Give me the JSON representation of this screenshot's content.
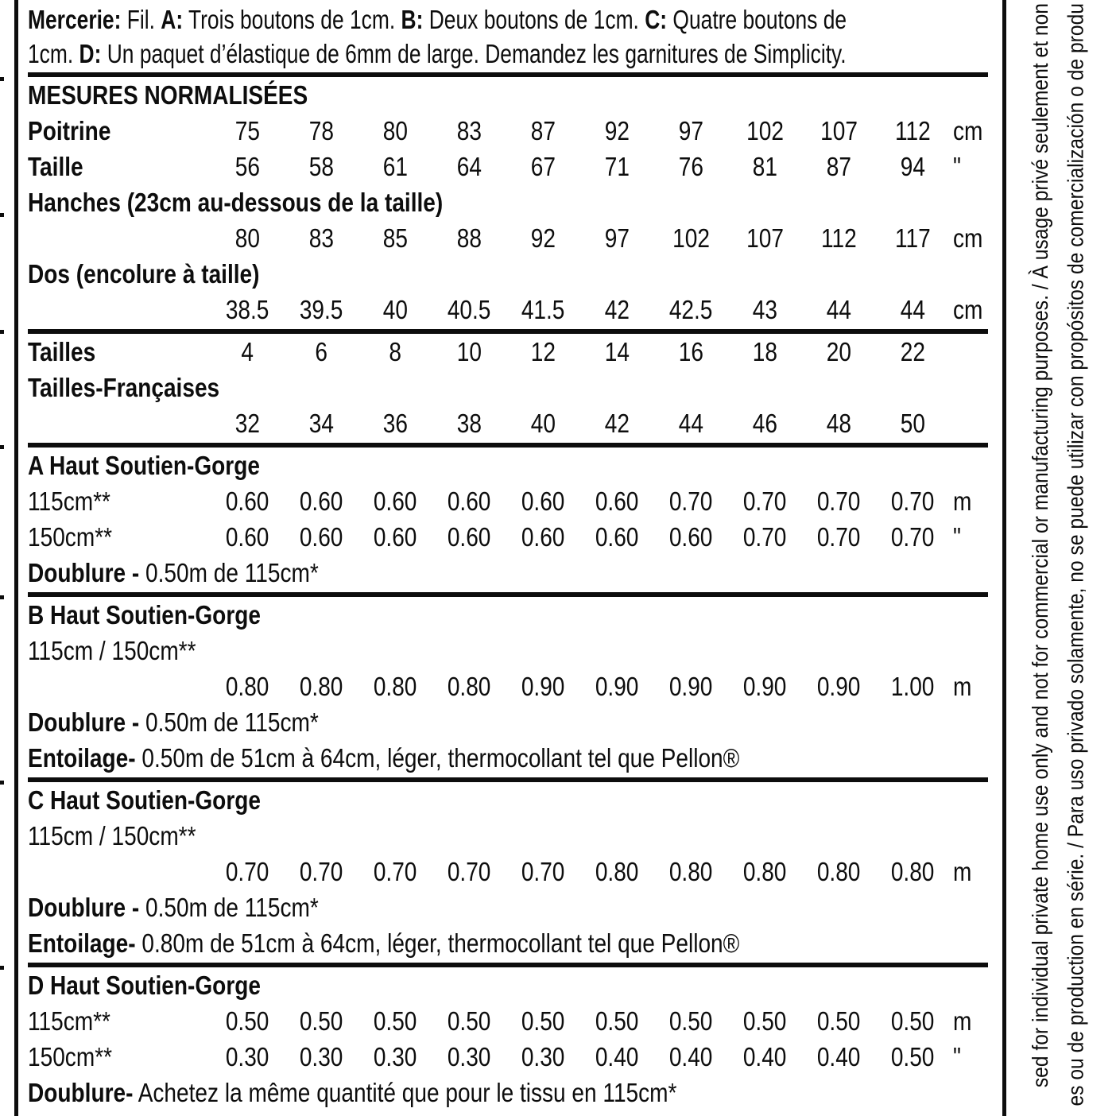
{
  "colors": {
    "ink": "#0d0d0d",
    "paper": "#ffffff"
  },
  "mercerie": {
    "b1": "Mercerie:",
    "r1": " Fil. ",
    "b2": "A:",
    "r2": " Trois boutons de 1cm. ",
    "b3": "B:",
    "r3": " Deux boutons de 1cm. ",
    "b4": "C:",
    "r4": " Quatre boutons de",
    "r5": "1cm. ",
    "b5": "D:",
    "r6": " Un paquet d’élastique de 6mm de large. Demandez les garnitures de Simplicity."
  },
  "measurements": {
    "title": "MESURES NORMALISÉES",
    "rows": [
      {
        "label": "Poitrine",
        "values": [
          "75",
          "78",
          "80",
          "83",
          "87",
          "92",
          "97",
          "102",
          "107",
          "112"
        ],
        "unit": "cm"
      },
      {
        "label": "Taille",
        "values": [
          "56",
          "58",
          "61",
          "64",
          "67",
          "71",
          "76",
          "81",
          "87",
          "94"
        ],
        "unit": "\""
      },
      {
        "label": "Hanches (23cm au-dessous de la taille)",
        "values": [
          "80",
          "83",
          "85",
          "88",
          "92",
          "97",
          "102",
          "107",
          "112",
          "117"
        ],
        "unit": "cm"
      },
      {
        "label": "Dos (encolure à taille)",
        "values": [
          "38.5",
          "39.5",
          "40",
          "40.5",
          "41.5",
          "42",
          "42.5",
          "43",
          "44",
          "44"
        ],
        "unit": "cm"
      }
    ]
  },
  "sizes": {
    "rows": [
      {
        "label": "Tailles",
        "values": [
          "4",
          "6",
          "8",
          "10",
          "12",
          "14",
          "16",
          "18",
          "20",
          "22"
        ],
        "unit": ""
      },
      {
        "label": "Tailles-Françaises",
        "values": [
          "32",
          "34",
          "36",
          "38",
          "40",
          "42",
          "44",
          "46",
          "48",
          "50"
        ],
        "unit": ""
      }
    ]
  },
  "sections": [
    {
      "title": "A Haut Soutien-Gorge",
      "rows": [
        {
          "label": "115cm**",
          "values": [
            "0.60",
            "0.60",
            "0.60",
            "0.60",
            "0.60",
            "0.60",
            "0.70",
            "0.70",
            "0.70",
            "0.70"
          ],
          "unit": "m"
        },
        {
          "label": "150cm**",
          "values": [
            "0.60",
            "0.60",
            "0.60",
            "0.60",
            "0.60",
            "0.60",
            "0.60",
            "0.70",
            "0.70",
            "0.70"
          ],
          "unit": "\""
        }
      ],
      "notes": [
        {
          "label": "Doublure -",
          "text": " 0.50m de 115cm*"
        }
      ]
    },
    {
      "title": "B Haut Soutien-Gorge",
      "fabric_label": "115cm / 150cm**",
      "rows": [
        {
          "label": "",
          "values": [
            "0.80",
            "0.80",
            "0.80",
            "0.80",
            "0.90",
            "0.90",
            "0.90",
            "0.90",
            "0.90",
            "1.00"
          ],
          "unit": "m"
        }
      ],
      "notes": [
        {
          "label": "Doublure -",
          "text": " 0.50m de 115cm*"
        },
        {
          "label": "Entoilage-",
          "text": " 0.50m de 51cm à 64cm, léger, thermocollant tel que Pellon®"
        }
      ]
    },
    {
      "title": "C Haut Soutien-Gorge",
      "fabric_label": "115cm / 150cm**",
      "rows": [
        {
          "label": "",
          "values": [
            "0.70",
            "0.70",
            "0.70",
            "0.70",
            "0.70",
            "0.80",
            "0.80",
            "0.80",
            "0.80",
            "0.80"
          ],
          "unit": "m"
        }
      ],
      "notes": [
        {
          "label": "Doublure -",
          "text": " 0.50m de 115cm*"
        },
        {
          "label": "Entoilage-",
          "text": " 0.80m de 51cm à 64cm, léger, thermocollant tel que Pellon®"
        }
      ]
    },
    {
      "title": "D Haut Soutien-Gorge",
      "rows": [
        {
          "label": "115cm**",
          "values": [
            "0.50",
            "0.50",
            "0.50",
            "0.50",
            "0.50",
            "0.50",
            "0.50",
            "0.50",
            "0.50",
            "0.50"
          ],
          "unit": "m"
        },
        {
          "label": "150cm**",
          "values": [
            "0.30",
            "0.30",
            "0.30",
            "0.30",
            "0.30",
            "0.40",
            "0.40",
            "0.40",
            "0.40",
            "0.50"
          ],
          "unit": "\""
        }
      ],
      "notes": [
        {
          "label": "Doublure-",
          "text": " Achetez la même quantité que pour le tissu en 115cm*"
        }
      ]
    }
  ],
  "vertical_notice": {
    "line1": "sed for individual private home use only and not for commercial or manufacturing purposes. / À usage privé seulement et non",
    "line2": "es ou de production en série. / Para uso privado solamente, no se puede utilizar con propósitos de comercialización o de produ"
  }
}
